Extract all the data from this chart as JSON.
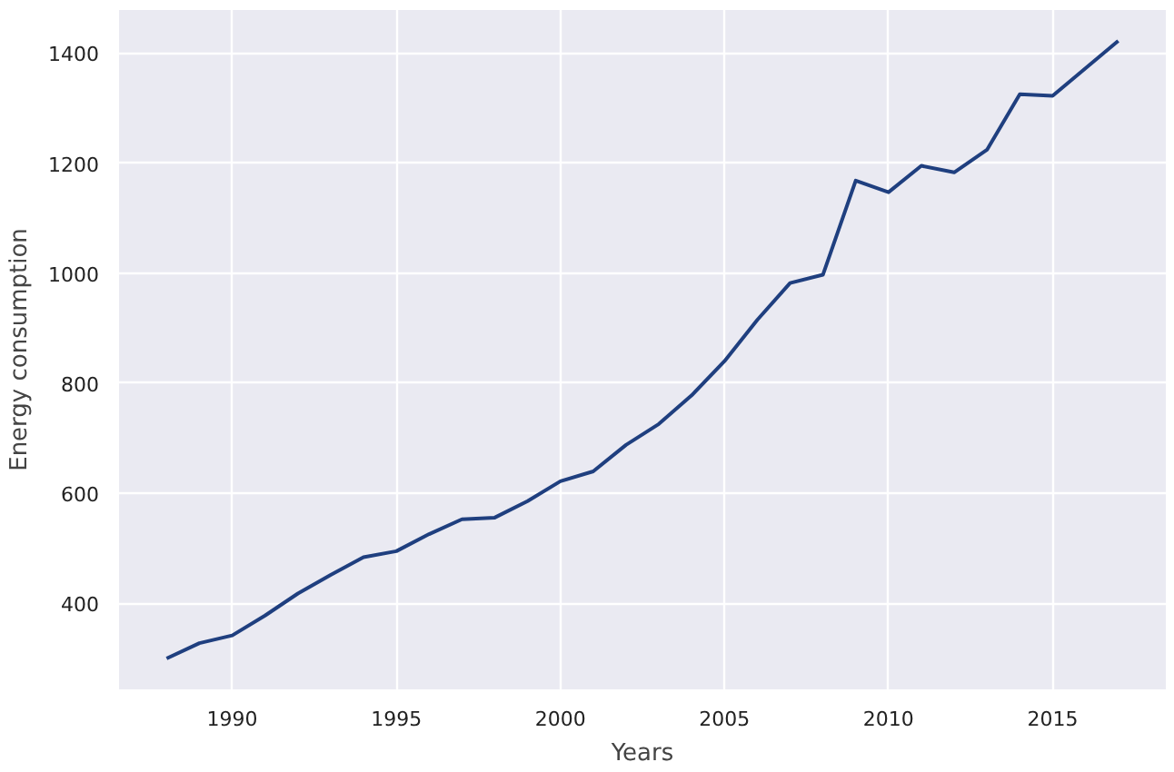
{
  "chart_data": {
    "type": "line",
    "xlabel": "Years",
    "ylabel": "Energy consumption",
    "x": [
      1988,
      1989,
      1990,
      1991,
      1992,
      1993,
      1994,
      1995,
      1996,
      1997,
      1998,
      1999,
      2000,
      2001,
      2002,
      2003,
      2004,
      2005,
      2006,
      2007,
      2008,
      2009,
      2010,
      2011,
      2012,
      2013,
      2014,
      2015,
      2016,
      2017
    ],
    "series": [
      {
        "color": "#1f3f7f",
        "values": [
          300,
          328,
          342,
          378,
          418,
          452,
          484,
          495,
          526,
          553,
          556,
          586,
          622,
          640,
          688,
          726,
          778,
          840,
          915,
          982,
          997,
          1168,
          1147,
          1195,
          1183,
          1224,
          1325,
          1322,
          1372,
          1422
        ]
      }
    ],
    "xlim": [
      1986.55,
      2018.45
    ],
    "ylim": [
      244,
      1478
    ],
    "xticks": [
      1990,
      1995,
      2000,
      2005,
      2010,
      2015
    ],
    "yticks": [
      400,
      600,
      800,
      1000,
      1200,
      1400
    ],
    "grid": true,
    "line_style": "solid",
    "marker": "none"
  }
}
